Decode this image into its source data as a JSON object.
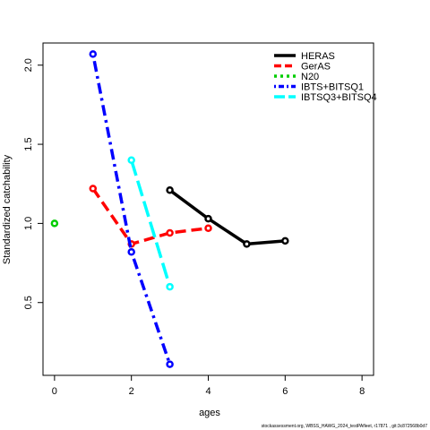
{
  "chart_data": {
    "type": "line",
    "xlabel": "ages",
    "ylabel": "Standardized catchability",
    "xlim": [
      -0.3,
      8.3
    ],
    "ylim": [
      0.04,
      2.14
    ],
    "xticks": [
      0,
      2,
      4,
      6,
      8
    ],
    "yticks": [
      0.5,
      1.0,
      1.5,
      2.0
    ],
    "xtick_labels": [
      "0",
      "2",
      "4",
      "6",
      "8"
    ],
    "ytick_labels": [
      "0.5",
      "1.0",
      "1.5",
      "2.0"
    ],
    "grid": false,
    "legend_position": "top-right",
    "series": [
      {
        "name": "HERAS",
        "color": "#000000",
        "dash": "solid",
        "x": [
          3,
          4,
          5,
          6
        ],
        "y": [
          1.21,
          1.03,
          0.87,
          0.89
        ]
      },
      {
        "name": "GerAS",
        "color": "#ff0000",
        "dash": "dashed",
        "x": [
          1,
          2,
          3,
          4
        ],
        "y": [
          1.22,
          0.87,
          0.94,
          0.97
        ]
      },
      {
        "name": "N20",
        "color": "#00cd00",
        "dash": "dotted",
        "x": [
          0
        ],
        "y": [
          1.0
        ]
      },
      {
        "name": "IBTS+BITSQ1",
        "color": "#0000ff",
        "dash": "dotdash",
        "x": [
          1,
          2,
          3
        ],
        "y": [
          2.07,
          0.82,
          0.11
        ]
      },
      {
        "name": "IBTSQ3+BITSQ4",
        "color": "#00ffff",
        "dash": "longdash",
        "x": [
          2,
          3
        ],
        "y": [
          1.4,
          0.6
        ]
      }
    ]
  },
  "footer": "stockassessment.org, WBSS_HAWG_2024_testPAfleet, r17871 , git:3c872568b0d7"
}
